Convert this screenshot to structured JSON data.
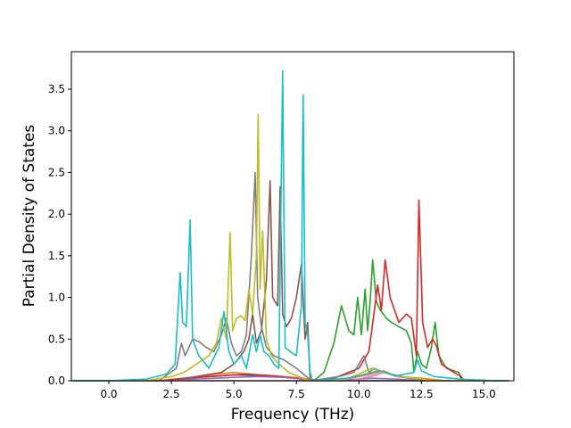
{
  "chart_data": {
    "type": "line",
    "xlabel": "Frequency (THz)",
    "ylabel": "Partial Density of States",
    "xlim": [
      -1.5,
      16.2
    ],
    "ylim": [
      0,
      3.95
    ],
    "x_ticks": [
      0.0,
      2.5,
      5.0,
      7.5,
      10.0,
      12.5,
      15.0
    ],
    "x_tick_labels": [
      "0.0",
      "2.5",
      "5.0",
      "7.5",
      "10.0",
      "12.5",
      "15.0"
    ],
    "y_ticks": [
      0.0,
      0.5,
      1.0,
      1.5,
      2.0,
      2.5,
      3.0,
      3.5
    ],
    "y_tick_labels": [
      "0.0",
      "0.5",
      "1.0",
      "1.5",
      "2.0",
      "2.5",
      "3.0",
      "3.5"
    ],
    "grid": false,
    "legend": "none",
    "series": [
      {
        "color": "#1f77b4",
        "points": [
          [
            -1.5,
            0
          ],
          [
            2,
            0
          ],
          [
            2.8,
            0.02
          ],
          [
            4,
            0.05
          ],
          [
            5,
            0.07
          ],
          [
            6,
            0.06
          ],
          [
            7,
            0.04
          ],
          [
            8,
            0.02
          ],
          [
            8.5,
            0
          ],
          [
            16,
            0
          ]
        ]
      },
      {
        "color": "#ff7f0e",
        "points": [
          [
            -1.5,
            0
          ],
          [
            2,
            0
          ],
          [
            3,
            0.03
          ],
          [
            4.3,
            0.08
          ],
          [
            5,
            0.1
          ],
          [
            6,
            0.07
          ],
          [
            7,
            0.05
          ],
          [
            7.8,
            0.03
          ],
          [
            8.2,
            0
          ],
          [
            9.5,
            0.02
          ],
          [
            10.5,
            0.08
          ],
          [
            11,
            0.12
          ],
          [
            11.5,
            0.05
          ],
          [
            12.5,
            0.03
          ],
          [
            13.5,
            0
          ],
          [
            16,
            0
          ]
        ]
      },
      {
        "color": "#2ca02c",
        "points": [
          [
            -1.5,
            0
          ],
          [
            8.2,
            0
          ],
          [
            8.6,
            0.1
          ],
          [
            9,
            0.45
          ],
          [
            9.3,
            0.9
          ],
          [
            9.6,
            0.6
          ],
          [
            9.8,
            0.55
          ],
          [
            9.95,
            1.0
          ],
          [
            10.1,
            0.55
          ],
          [
            10.25,
            1.1
          ],
          [
            10.35,
            0.6
          ],
          [
            10.45,
            0.95
          ],
          [
            10.55,
            1.45
          ],
          [
            10.7,
            0.95
          ],
          [
            10.85,
            0.85
          ],
          [
            11.1,
            0.75
          ],
          [
            11.3,
            0.7
          ],
          [
            11.6,
            0.65
          ],
          [
            11.9,
            0.6
          ],
          [
            12.1,
            0.45
          ],
          [
            12.2,
            0.1
          ],
          [
            12.35,
            0.35
          ],
          [
            12.5,
            0.2
          ],
          [
            12.7,
            0.15
          ],
          [
            12.9,
            0.4
          ],
          [
            13.05,
            0.7
          ],
          [
            13.2,
            0.3
          ],
          [
            13.5,
            0.15
          ],
          [
            14,
            0.1
          ],
          [
            14.1,
            0
          ],
          [
            16,
            0
          ]
        ]
      },
      {
        "color": "#d62728",
        "points": [
          [
            -1.5,
            0
          ],
          [
            2,
            0
          ],
          [
            3,
            0.03
          ],
          [
            4.5,
            0.06
          ],
          [
            5.5,
            0.08
          ],
          [
            6.5,
            0.06
          ],
          [
            7.5,
            0.03
          ],
          [
            8,
            0
          ],
          [
            9,
            0.03
          ],
          [
            10,
            0.15
          ],
          [
            10.4,
            0.35
          ],
          [
            10.6,
            0.8
          ],
          [
            10.75,
            1.15
          ],
          [
            10.9,
            0.85
          ],
          [
            11.05,
            1.45
          ],
          [
            11.25,
            1.0
          ],
          [
            11.6,
            0.7
          ],
          [
            11.9,
            0.8
          ],
          [
            12.1,
            0.75
          ],
          [
            12.3,
            0.3
          ],
          [
            12.4,
            2.17
          ],
          [
            12.55,
            0.7
          ],
          [
            12.75,
            0.4
          ],
          [
            12.95,
            0.5
          ],
          [
            13.1,
            0.42
          ],
          [
            13.3,
            0.2
          ],
          [
            13.8,
            0.1
          ],
          [
            14.1,
            0.05
          ],
          [
            14.2,
            0
          ],
          [
            16,
            0
          ]
        ]
      },
      {
        "color": "#9467bd",
        "points": [
          [
            -1.5,
            0
          ],
          [
            2.5,
            0
          ],
          [
            3.5,
            0.02
          ],
          [
            5,
            0.04
          ],
          [
            6,
            0.05
          ],
          [
            7,
            0.04
          ],
          [
            7.8,
            0.02
          ],
          [
            8.2,
            0
          ],
          [
            9.5,
            0.01
          ],
          [
            10.5,
            0.03
          ],
          [
            11.5,
            0.02
          ],
          [
            12.5,
            0
          ],
          [
            16,
            0
          ]
        ]
      },
      {
        "color": "#8c564b",
        "points": [
          [
            -1.5,
            0
          ],
          [
            2.5,
            0
          ],
          [
            3.5,
            0.05
          ],
          [
            4.5,
            0.1
          ],
          [
            5,
            0.2
          ],
          [
            5.4,
            0.35
          ],
          [
            5.6,
            0.5
          ],
          [
            5.75,
            0.8
          ],
          [
            5.9,
            0.45
          ],
          [
            6.1,
            0.6
          ],
          [
            6.3,
            1.2
          ],
          [
            6.45,
            2.4
          ],
          [
            6.55,
            1.0
          ],
          [
            6.75,
            0.9
          ],
          [
            6.85,
            2.33
          ],
          [
            6.95,
            0.8
          ],
          [
            7.1,
            0.65
          ],
          [
            7.3,
            0.75
          ],
          [
            7.5,
            1.0
          ],
          [
            7.7,
            1.4
          ],
          [
            7.85,
            0.5
          ],
          [
            7.95,
            0.7
          ],
          [
            8.05,
            0
          ],
          [
            16,
            0
          ]
        ]
      },
      {
        "color": "#e377c2",
        "points": [
          [
            -1.5,
            0
          ],
          [
            9.6,
            0
          ],
          [
            10,
            0.02
          ],
          [
            10.6,
            0.06
          ],
          [
            11,
            0.1
          ],
          [
            11.5,
            0.05
          ],
          [
            12,
            0.03
          ],
          [
            12.6,
            0
          ],
          [
            16,
            0
          ]
        ]
      },
      {
        "color": "#7f7f7f",
        "points": [
          [
            -1.5,
            0
          ],
          [
            2,
            0
          ],
          [
            2.7,
            0.15
          ],
          [
            2.9,
            0.45
          ],
          [
            3.05,
            0.3
          ],
          [
            3.2,
            0.4
          ],
          [
            3.35,
            0.5
          ],
          [
            3.6,
            0.47
          ],
          [
            3.9,
            0.4
          ],
          [
            4.2,
            0.35
          ],
          [
            4.5,
            0.55
          ],
          [
            4.7,
            0.75
          ],
          [
            4.9,
            0.45
          ],
          [
            5.1,
            0.3
          ],
          [
            5.3,
            0.35
          ],
          [
            5.5,
            0.55
          ],
          [
            5.7,
            1.5
          ],
          [
            5.85,
            2.5
          ],
          [
            5.95,
            1.0
          ],
          [
            6.1,
            0.65
          ],
          [
            6.3,
            0.4
          ],
          [
            6.6,
            0.3
          ],
          [
            7,
            0.25
          ],
          [
            7.5,
            0.15
          ],
          [
            7.9,
            0.05
          ],
          [
            8.1,
            0
          ],
          [
            9.2,
            0.05
          ],
          [
            9.8,
            0.1
          ],
          [
            10.2,
            0.3
          ],
          [
            10.4,
            0.1
          ],
          [
            10.6,
            0.15
          ],
          [
            11,
            0.1
          ],
          [
            12,
            0.03
          ],
          [
            12.8,
            0
          ],
          [
            16,
            0
          ]
        ]
      },
      {
        "color": "#bcbd22",
        "points": [
          [
            -1.5,
            0
          ],
          [
            1.5,
            0
          ],
          [
            2.5,
            0.05
          ],
          [
            3,
            0.1
          ],
          [
            3.5,
            0.2
          ],
          [
            4,
            0.3
          ],
          [
            4.3,
            0.45
          ],
          [
            4.5,
            0.75
          ],
          [
            4.7,
            0.5
          ],
          [
            4.85,
            1.78
          ],
          [
            4.95,
            0.6
          ],
          [
            5.1,
            0.75
          ],
          [
            5.3,
            0.78
          ],
          [
            5.45,
            0.72
          ],
          [
            5.6,
            1.1
          ],
          [
            5.75,
            0.8
          ],
          [
            5.9,
            1.5
          ],
          [
            5.97,
            3.2
          ],
          [
            6.05,
            1.1
          ],
          [
            6.15,
            1.8
          ],
          [
            6.3,
            0.5
          ],
          [
            6.5,
            0.3
          ],
          [
            6.8,
            0.2
          ],
          [
            7.2,
            0.1
          ],
          [
            7.6,
            0.05
          ],
          [
            8,
            0
          ],
          [
            9.5,
            0.02
          ],
          [
            10,
            0.08
          ],
          [
            10.5,
            0.15
          ],
          [
            11,
            0.1
          ],
          [
            11.5,
            0.05
          ],
          [
            12.5,
            0.02
          ],
          [
            13,
            0
          ],
          [
            16,
            0
          ]
        ]
      },
      {
        "color": "#17becf",
        "points": [
          [
            -1.5,
            0
          ],
          [
            0,
            0
          ],
          [
            1.5,
            0.02
          ],
          [
            2.3,
            0.08
          ],
          [
            2.65,
            0.2
          ],
          [
            2.85,
            1.3
          ],
          [
            2.95,
            0.7
          ],
          [
            3.1,
            0.65
          ],
          [
            3.25,
            1.93
          ],
          [
            3.35,
            0.5
          ],
          [
            3.6,
            0.3
          ],
          [
            4,
            0.15
          ],
          [
            4.4,
            0.4
          ],
          [
            4.6,
            0.83
          ],
          [
            4.8,
            0.35
          ],
          [
            5,
            0.2
          ],
          [
            5.3,
            0.3
          ],
          [
            5.5,
            0.15
          ],
          [
            5.75,
            0.55
          ],
          [
            5.9,
            0.35
          ],
          [
            6.05,
            0.55
          ],
          [
            6.2,
            0.35
          ],
          [
            6.4,
            0.3
          ],
          [
            6.6,
            0.2
          ],
          [
            6.8,
            0.15
          ],
          [
            6.95,
            3.72
          ],
          [
            7.05,
            0.4
          ],
          [
            7.25,
            0.35
          ],
          [
            7.5,
            0.3
          ],
          [
            7.7,
            0.9
          ],
          [
            7.77,
            3.43
          ],
          [
            7.85,
            0.7
          ],
          [
            7.95,
            0.55
          ],
          [
            8.05,
            0.1
          ],
          [
            8.15,
            0
          ],
          [
            9.5,
            0.03
          ],
          [
            10,
            0.06
          ],
          [
            10.8,
            0.12
          ],
          [
            11.5,
            0.06
          ],
          [
            12.2,
            0.1
          ],
          [
            12.35,
            0.25
          ],
          [
            12.5,
            0.12
          ],
          [
            13,
            0.05
          ],
          [
            14,
            0.02
          ],
          [
            15.5,
            0
          ],
          [
            16,
            0
          ]
        ]
      }
    ]
  }
}
